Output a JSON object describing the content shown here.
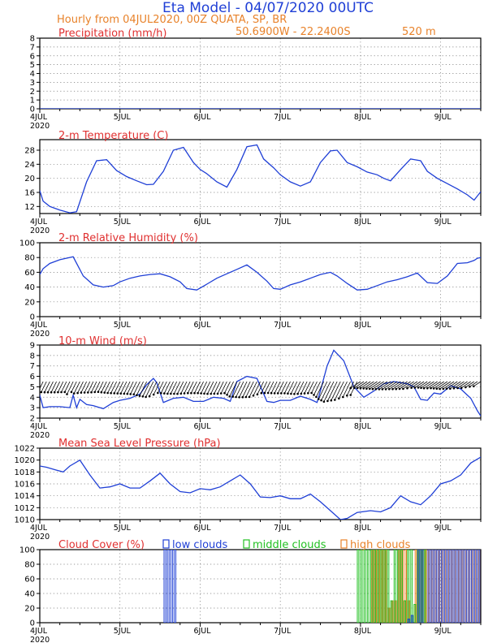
{
  "header": {
    "title": "Eta Model - 04/07/2020 00UTC",
    "subtitle": "Hourly from 04JUL2020, 00Z  QUATA, SP, BR",
    "coords": "50.6900W - 22.2400S",
    "elevation": "520  m"
  },
  "colors": {
    "title": "#1f3fd6",
    "orange": "#e8822a",
    "red": "#e03030",
    "blue": "#1f3fd6",
    "green": "#22c022",
    "black": "#000000"
  },
  "x_axis": {
    "labels": [
      "4JUL",
      "5JUL",
      "6JUL",
      "7JUL",
      "8JUL",
      "9JUL"
    ],
    "year": "2020",
    "hours_span": 132
  },
  "chart_data": [
    {
      "id": "precip",
      "type": "line",
      "title": "Precipitation (mm/h)",
      "ylim": [
        0,
        8
      ],
      "yticks": [
        "0",
        "1",
        "2",
        "3",
        "4",
        "5",
        "6",
        "7",
        "8"
      ],
      "series": [
        {
          "name": "precipitation",
          "hours": [
            0,
            132
          ],
          "values": [
            0,
            0
          ]
        }
      ]
    },
    {
      "id": "temp",
      "type": "line",
      "title": "2-m Temperature (C)",
      "ylim": [
        10,
        31
      ],
      "yticks": [
        "12",
        "16",
        "20",
        "24",
        "28"
      ],
      "series": [
        {
          "name": "temperature",
          "hours": [
            0,
            1,
            3,
            6,
            9,
            11,
            14,
            17,
            20,
            23,
            26,
            29,
            32,
            34,
            37,
            40,
            43,
            46,
            48,
            50,
            53,
            56,
            59,
            62,
            65,
            67,
            70,
            72,
            75,
            78,
            81,
            84,
            87,
            89,
            92,
            95,
            98,
            101,
            103,
            105,
            108,
            111,
            114,
            116,
            119,
            122,
            125,
            128,
            130,
            132
          ],
          "values": [
            16.5,
            13.5,
            12.0,
            11.0,
            10.2,
            10.5,
            19.0,
            25.0,
            25.3,
            22.2,
            20.5,
            19.3,
            18.2,
            18.3,
            22.0,
            28.0,
            28.8,
            24.5,
            22.5,
            21.3,
            19.0,
            17.5,
            22.5,
            29.0,
            29.5,
            25.5,
            23.0,
            21.0,
            19.0,
            17.8,
            19.0,
            24.5,
            27.8,
            28.0,
            24.5,
            23.3,
            21.8,
            21.0,
            20.0,
            19.3,
            22.5,
            25.5,
            25.0,
            22.0,
            20.0,
            18.5,
            17.0,
            15.3,
            13.8,
            16.2
          ]
        }
      ]
    },
    {
      "id": "rh",
      "type": "line",
      "title": "2-m Relative Humidity (%)",
      "ylim": [
        0,
        100
      ],
      "yticks": [
        "0",
        "20",
        "40",
        "60",
        "80",
        "100"
      ],
      "series": [
        {
          "name": "relative humidity",
          "hours": [
            0,
            1,
            3,
            6,
            10,
            13,
            16,
            19,
            22,
            24,
            27,
            30,
            33,
            36,
            39,
            42,
            44,
            47,
            50,
            53,
            56,
            59,
            62,
            65,
            68,
            70,
            72,
            75,
            78,
            81,
            84,
            87,
            89,
            92,
            95,
            98,
            101,
            104,
            107,
            110,
            113,
            116,
            119,
            122,
            125,
            128,
            130,
            131,
            132
          ],
          "values": [
            57,
            65,
            72,
            77,
            81,
            55,
            43,
            40,
            42,
            47,
            52,
            55,
            57,
            58,
            54,
            47,
            38,
            36,
            44,
            52,
            58,
            64,
            70,
            60,
            48,
            38,
            37,
            43,
            47,
            52,
            57,
            60,
            55,
            45,
            36,
            37,
            42,
            47,
            50,
            54,
            59,
            46,
            45,
            55,
            72,
            73,
            76,
            79,
            80
          ]
        }
      ]
    },
    {
      "id": "wind",
      "type": "line",
      "title": "10-m Wind (m/s)",
      "ylim": [
        2,
        9
      ],
      "yticks": [
        "2",
        "3",
        "4",
        "5",
        "6",
        "7",
        "8",
        "9"
      ],
      "series": [
        {
          "name": "wind speed",
          "hours": [
            0,
            1,
            3,
            6,
            9,
            10,
            11,
            12,
            14,
            16,
            19,
            22,
            24,
            27,
            30,
            32,
            34,
            35,
            37,
            40,
            43,
            46,
            49,
            52,
            55,
            57,
            59,
            62,
            65,
            68,
            70,
            72,
            75,
            78,
            81,
            83,
            84,
            86,
            88,
            91,
            94,
            97,
            100,
            103,
            106,
            108,
            110,
            112,
            114,
            116,
            118,
            120,
            123,
            126,
            129,
            131,
            132
          ],
          "values": [
            4.2,
            3.0,
            3.1,
            3.1,
            3.0,
            4.2,
            3.0,
            3.8,
            3.3,
            3.2,
            2.9,
            3.5,
            3.7,
            3.9,
            4.3,
            5.2,
            5.8,
            5.4,
            3.5,
            3.9,
            4.0,
            3.6,
            3.6,
            4.0,
            3.9,
            3.6,
            5.5,
            6.0,
            5.8,
            3.6,
            3.5,
            3.7,
            3.7,
            4.1,
            3.8,
            3.5,
            4.6,
            7.0,
            8.5,
            7.5,
            5.0,
            4.0,
            4.6,
            5.3,
            5.5,
            5.4,
            5.3,
            5.0,
            3.8,
            3.7,
            4.4,
            4.3,
            5.1,
            4.8,
            3.9,
            2.7,
            2.2
          ]
        }
      ]
    },
    {
      "id": "slp",
      "type": "line",
      "title": "Mean Sea Level Pressure (hPa)",
      "ylim": [
        1010,
        1022
      ],
      "yticks": [
        "1010",
        "1012",
        "1014",
        "1016",
        "1018",
        "1020",
        "1022"
      ],
      "series": [
        {
          "name": "mslp",
          "hours": [
            0,
            2,
            5,
            7,
            9,
            12,
            15,
            18,
            21,
            24,
            27,
            30,
            33,
            36,
            39,
            42,
            45,
            48,
            51,
            54,
            57,
            60,
            63,
            66,
            69,
            72,
            75,
            78,
            81,
            84,
            87,
            90,
            92,
            95,
            99,
            102,
            105,
            108,
            111,
            114,
            117,
            120,
            123,
            126,
            129,
            132
          ],
          "values": [
            1019.0,
            1018.8,
            1018.3,
            1018.0,
            1019.0,
            1020.0,
            1017.5,
            1015.3,
            1015.5,
            1016.0,
            1015.3,
            1015.3,
            1016.5,
            1017.8,
            1016.0,
            1014.7,
            1014.5,
            1015.2,
            1015.0,
            1015.5,
            1016.5,
            1017.5,
            1016.0,
            1013.8,
            1013.7,
            1014.0,
            1013.5,
            1013.5,
            1014.3,
            1013.0,
            1011.5,
            1010.0,
            1010.2,
            1011.2,
            1011.5,
            1011.3,
            1012.0,
            1014.0,
            1013.0,
            1012.5,
            1014.0,
            1016.0,
            1016.5,
            1017.5,
            1019.5,
            1020.5
          ]
        }
      ]
    },
    {
      "id": "cloud",
      "type": "bar",
      "title": "Cloud Cover (%)",
      "ylim": [
        0,
        100
      ],
      "yticks": [
        "0",
        "20",
        "40",
        "60",
        "80",
        "100"
      ],
      "legend": {
        "low": "low clouds",
        "mid": "middle clouds",
        "high": "high clouds"
      },
      "low_hours": [
        37,
        38,
        39,
        40,
        110,
        111,
        113,
        114,
        116,
        117,
        118,
        119,
        120,
        121,
        122,
        123,
        124,
        125,
        126,
        127,
        128,
        129,
        130,
        131
      ],
      "low_values": [
        100,
        100,
        100,
        100,
        5,
        10,
        100,
        100,
        100,
        100,
        100,
        100,
        100,
        100,
        100,
        100,
        100,
        100,
        100,
        100,
        100,
        100,
        100,
        100
      ],
      "mid_hours": [
        95,
        96,
        97,
        98,
        99,
        100,
        101,
        102,
        103,
        104,
        105,
        106,
        107,
        108,
        109,
        110,
        111,
        112,
        113,
        114,
        115
      ],
      "mid_values": [
        100,
        100,
        100,
        100,
        100,
        100,
        100,
        100,
        100,
        100,
        30,
        100,
        100,
        100,
        30,
        100,
        100,
        25,
        100,
        100,
        100
      ],
      "high_hours": [
        99,
        100,
        101,
        102,
        103,
        104,
        105,
        106,
        107,
        108,
        109,
        110,
        112,
        113,
        114,
        115,
        116,
        117,
        118,
        119,
        120,
        121,
        122,
        123,
        124,
        125,
        126,
        127,
        128,
        129,
        130,
        131,
        132
      ],
      "high_values": [
        100,
        100,
        100,
        100,
        100,
        20,
        30,
        30,
        100,
        100,
        100,
        30,
        100,
        100,
        100,
        100,
        100,
        100,
        100,
        100,
        100,
        100,
        100,
        100,
        100,
        100,
        100,
        100,
        100,
        100,
        100,
        100,
        100
      ]
    }
  ]
}
